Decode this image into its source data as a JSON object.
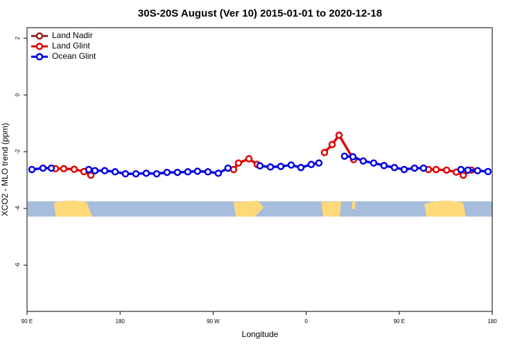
{
  "chart_data": {
    "type": "line",
    "title": "30S-20S August (Ver 10)   2015-01-01 to 2020-12-18",
    "xlabel": "Longitude",
    "ylabel": "XCO2 - MLO trend (ppm)",
    "xlim": [
      90,
      540
    ],
    "xticks": [
      {
        "value": 90,
        "label": "90 E"
      },
      180,
      {
        "value": 270,
        "label": "90 W"
      },
      {
        "value": 360,
        "label": "0"
      },
      {
        "value": 450,
        "label": "90 E"
      },
      {
        "value": 540,
        "label": "180"
      }
    ],
    "ylim": [
      -7.63,
      2.37
    ],
    "yticks": [
      -6,
      -4,
      -2,
      0,
      2
    ],
    "legend": "top-left",
    "series": [
      {
        "name": "Land Nadir",
        "color": "#8b2323",
        "x": [],
        "values": []
      },
      {
        "name": "Land Glint",
        "color": "#e00000",
        "x": [
          117.5,
          125.5,
          135.6,
          145,
          151.7,
          null,
          289.8,
          294.5,
          304.6,
          312.6,
          null,
          377.7,
          385.1,
          391.8,
          405.9,
          null,
          478.3,
          485.7,
          495.8,
          505.2,
          511.9,
          519.9
        ],
        "values": [
          -2.6,
          -2.6,
          -2.62,
          -2.7,
          -2.83,
          null,
          -2.63,
          -2.4,
          -2.25,
          -2.45,
          null,
          -2.03,
          -1.75,
          -1.42,
          -2.28,
          null,
          -2.63,
          -2.63,
          -2.65,
          -2.72,
          -2.83,
          -2.65
        ]
      },
      {
        "name": "Ocean Glint",
        "color": "#0000e0",
        "x": [
          94.7,
          105.4,
          113.5,
          null,
          149.7,
          155.7,
          165.1,
          175.2,
          185.2,
          195.3,
          205.3,
          215.4,
          225.4,
          235.5,
          245.5,
          254.9,
          265,
          275,
          284.4,
          null,
          315.3,
          325.4,
          335.4,
          345.5,
          354.9,
          364.9,
          372.3,
          null,
          397.1,
          405.2,
          415.2,
          425.3,
          435.3,
          445.4,
          454.8,
          464.8,
          473.5,
          null,
          509.7,
          516.4,
          525.8,
          535.9
        ],
        "values": [
          -2.63,
          -2.58,
          -2.58,
          null,
          -2.63,
          -2.67,
          -2.67,
          -2.71,
          -2.78,
          -2.78,
          -2.76,
          -2.78,
          -2.73,
          -2.73,
          -2.71,
          -2.69,
          -2.71,
          -2.76,
          -2.58,
          null,
          -2.5,
          -2.54,
          -2.52,
          -2.47,
          -2.56,
          -2.45,
          -2.4,
          null,
          -2.16,
          -2.18,
          -2.33,
          -2.4,
          -2.49,
          -2.56,
          -2.63,
          -2.58,
          -2.58,
          null,
          -2.63,
          -2.65,
          -2.67,
          -2.7
        ]
      }
    ]
  }
}
